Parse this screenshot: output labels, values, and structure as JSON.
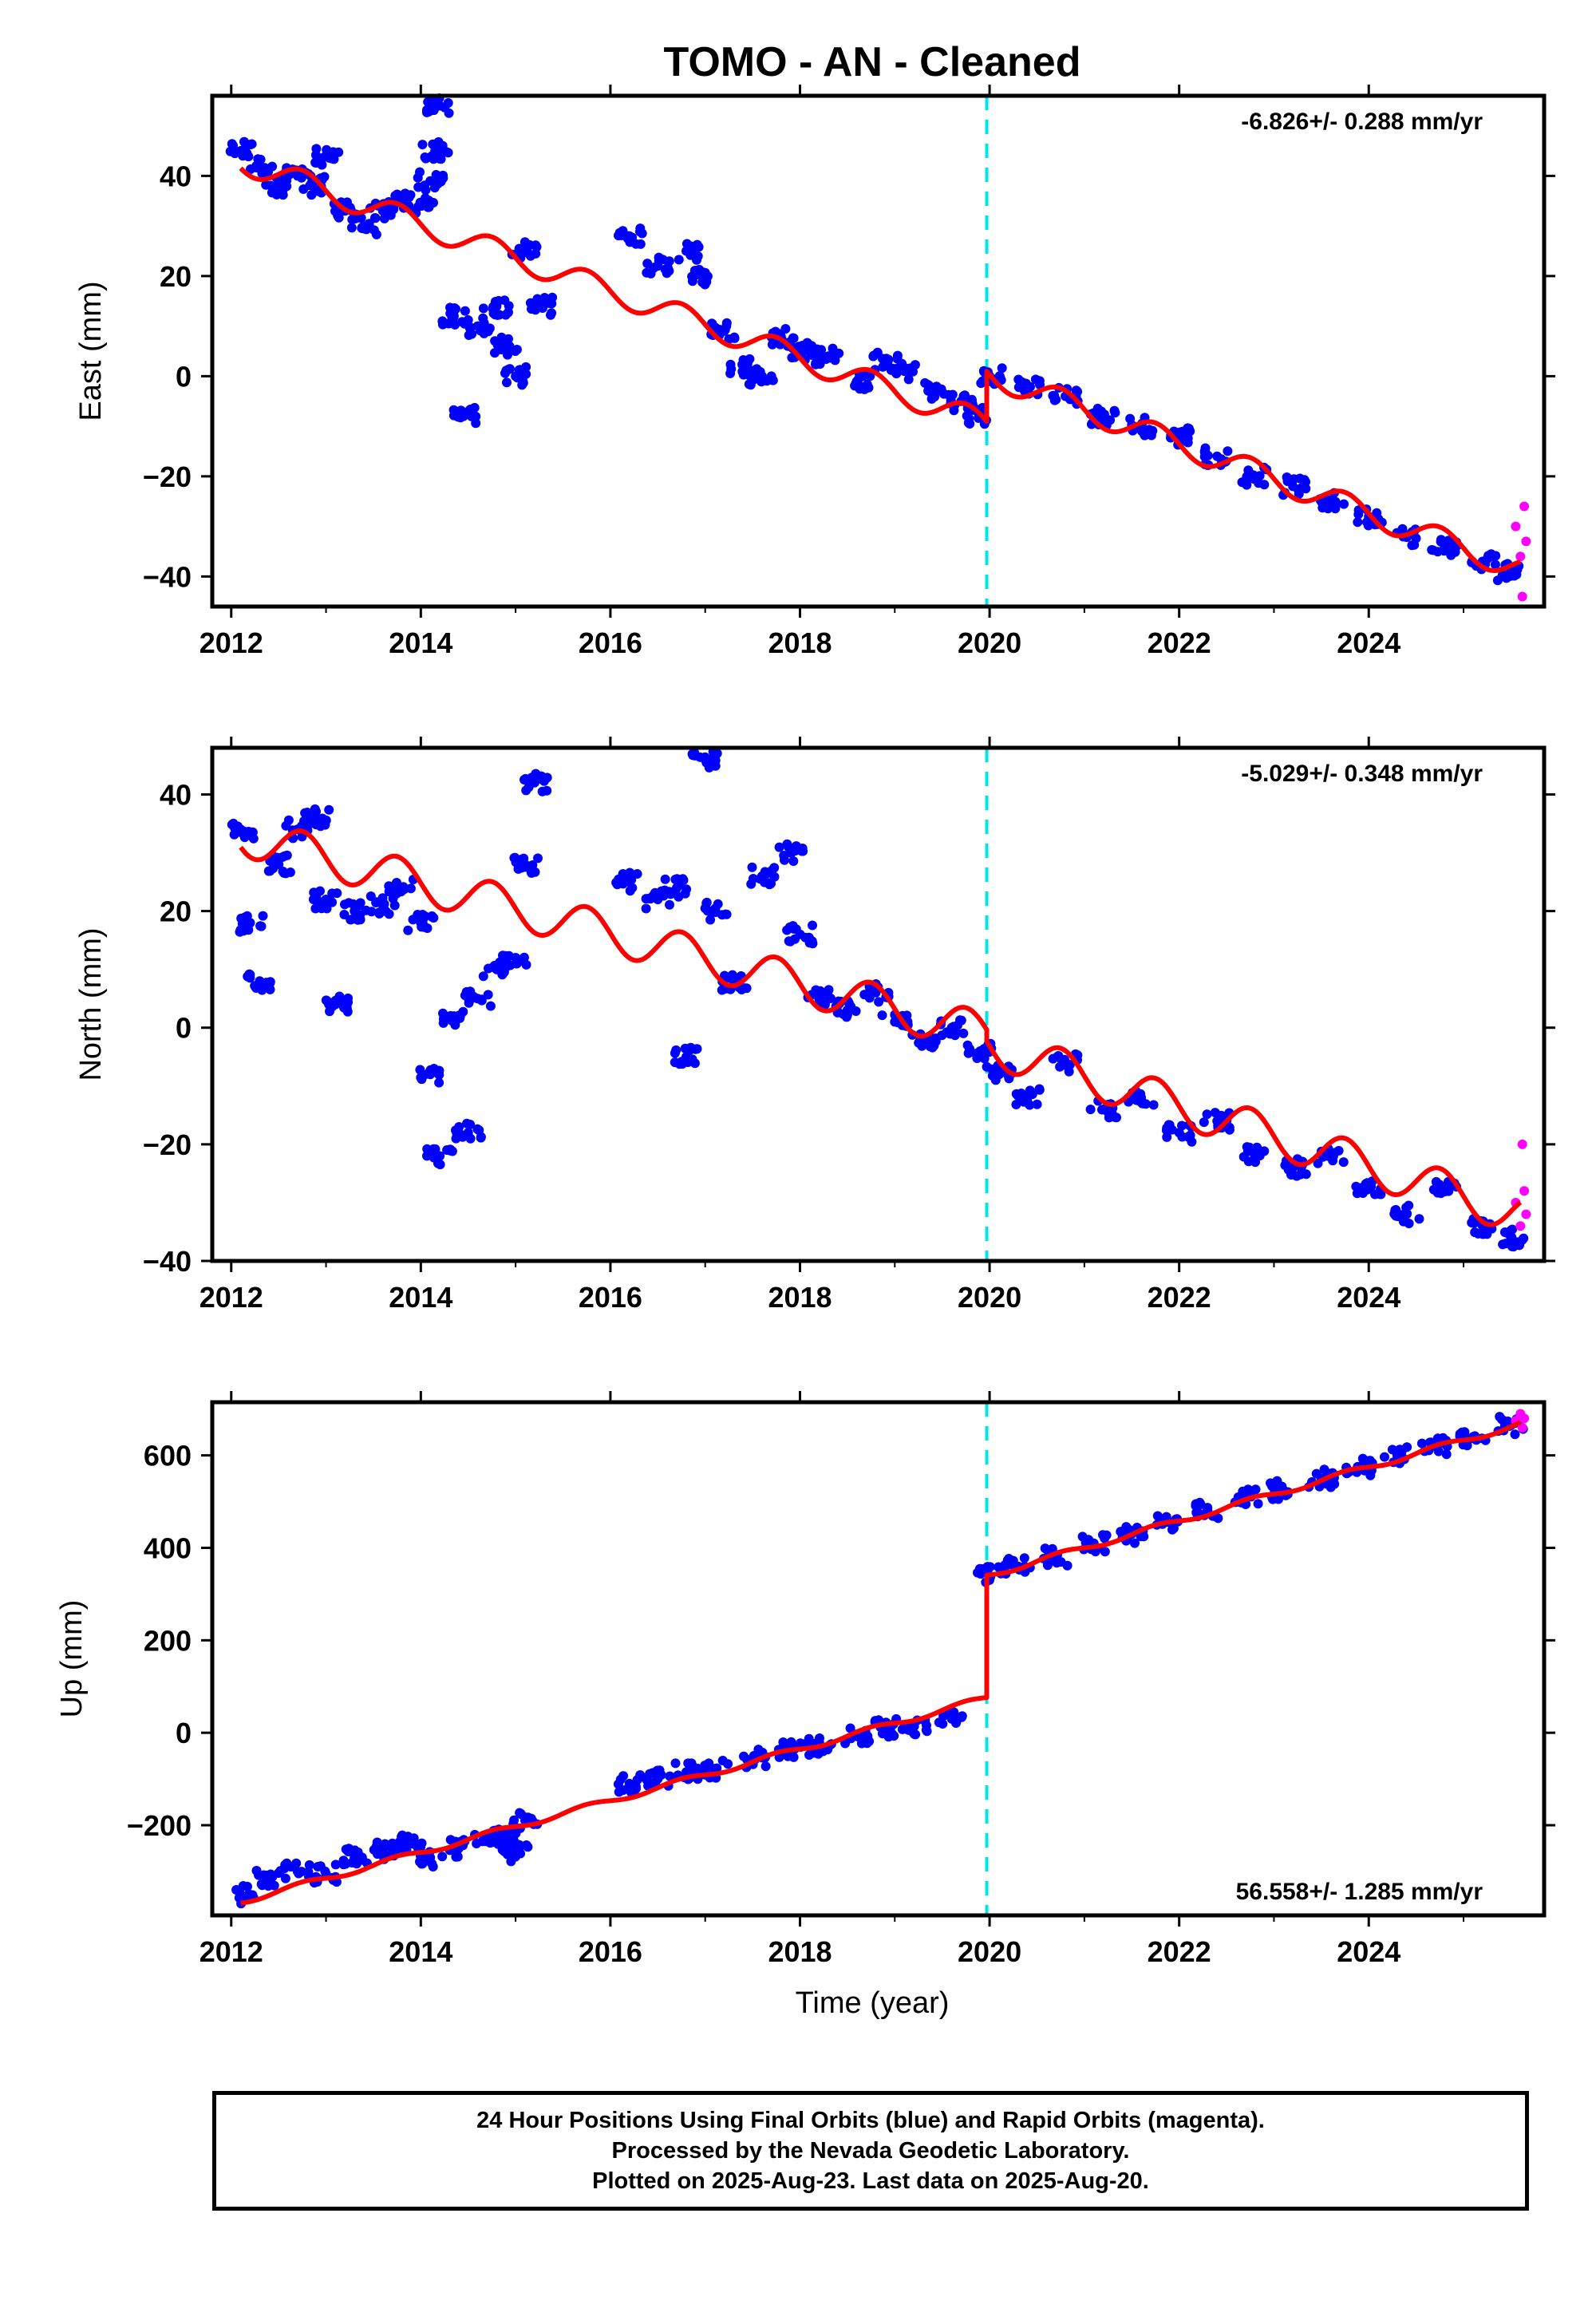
{
  "title": "TOMO  - AN - Cleaned",
  "xlabel": "Time (year)",
  "footer": {
    "line1": "24 Hour Positions Using Final Orbits (blue) and Rapid Orbits (magenta).",
    "line2": "Processed by the Nevada Geodetic Laboratory.",
    "line3": "Plotted on 2025-Aug-23. Last data on 2025-Aug-20."
  },
  "colors": {
    "final": "#0000ff",
    "rapid": "#ff00ff",
    "model": "#ff0000",
    "equipment_change": "#00e5e5"
  },
  "chart_data": [
    {
      "type": "scatter",
      "name": "east",
      "ylabel": "East (mm)",
      "rate_label": "-6.826+/- 0.288 mm/yr",
      "rate_position": "top-right",
      "xlim": [
        2011.8,
        2025.85
      ],
      "ylim": [
        -46,
        56
      ],
      "xticks": [
        2012,
        2014,
        2016,
        2018,
        2020,
        2022,
        2024
      ],
      "yticks": [
        -40,
        -20,
        0,
        20,
        40
      ],
      "step_epoch": 2019.97,
      "model": {
        "segments": [
          {
            "x0": 2012.1,
            "x1": 2019.97,
            "y0": 43.0,
            "y1": -9.5
          },
          {
            "x0": 2019.97,
            "x1": 2025.6,
            "y0": 0.5,
            "y1": -38.5
          }
        ],
        "seasonal_amplitude": 2.5
      },
      "final_points": [
        [
          2012.1,
          45
        ],
        [
          2012.3,
          42
        ],
        [
          2012.5,
          38
        ],
        [
          2012.7,
          40
        ],
        [
          2012.9,
          38
        ],
        [
          2013.0,
          44
        ],
        [
          2013.2,
          33
        ],
        [
          2013.4,
          30
        ],
        [
          2013.6,
          33
        ],
        [
          2013.8,
          35
        ],
        [
          2014.0,
          34
        ],
        [
          2014.1,
          39
        ],
        [
          2014.15,
          45
        ],
        [
          2014.2,
          54
        ],
        [
          2014.35,
          12
        ],
        [
          2014.45,
          -8
        ],
        [
          2014.6,
          10
        ],
        [
          2014.8,
          14
        ],
        [
          2014.9,
          6
        ],
        [
          2015.0,
          0
        ],
        [
          2015.1,
          25
        ],
        [
          2015.25,
          14
        ],
        [
          2016.2,
          28
        ],
        [
          2016.5,
          22
        ],
        [
          2016.8,
          25
        ],
        [
          2017.0,
          20
        ],
        [
          2017.2,
          9
        ],
        [
          2017.4,
          2
        ],
        [
          2017.6,
          0
        ],
        [
          2017.8,
          8
        ],
        [
          2018.0,
          5
        ],
        [
          2018.3,
          4
        ],
        [
          2018.6,
          -1
        ],
        [
          2018.9,
          3
        ],
        [
          2019.1,
          1
        ],
        [
          2019.4,
          -3
        ],
        [
          2019.7,
          -5
        ],
        [
          2019.9,
          -8
        ],
        [
          2020.0,
          0
        ],
        [
          2020.4,
          -2
        ],
        [
          2020.8,
          -4
        ],
        [
          2021.2,
          -8
        ],
        [
          2021.6,
          -10
        ],
        [
          2022.0,
          -12
        ],
        [
          2022.4,
          -16
        ],
        [
          2022.8,
          -20
        ],
        [
          2023.2,
          -22
        ],
        [
          2023.6,
          -25
        ],
        [
          2024.0,
          -28
        ],
        [
          2024.4,
          -32
        ],
        [
          2024.8,
          -34
        ],
        [
          2025.2,
          -37
        ],
        [
          2025.5,
          -39
        ]
      ],
      "rapid_points": [
        [
          2025.55,
          -30
        ],
        [
          2025.6,
          -36
        ],
        [
          2025.62,
          -44
        ],
        [
          2025.64,
          -26
        ],
        [
          2025.66,
          -33
        ]
      ]
    },
    {
      "type": "scatter",
      "name": "north",
      "ylabel": "North (mm)",
      "rate_label": "-5.029+/- 0.348 mm/yr",
      "rate_position": "top-right",
      "xlim": [
        2011.8,
        2025.85
      ],
      "ylim": [
        -40,
        48
      ],
      "xticks": [
        2012,
        2014,
        2016,
        2018,
        2020,
        2022,
        2024
      ],
      "yticks": [
        -40,
        -20,
        0,
        20,
        40
      ],
      "step_epoch": 2019.97,
      "model": {
        "segments": [
          {
            "x0": 2012.1,
            "x1": 2019.97,
            "y0": 33.0,
            "y1": -1.0
          },
          {
            "x0": 2019.97,
            "x1": 2025.6,
            "y0": -3.0,
            "y1": -32.0
          }
        ],
        "seasonal_amplitude": 3.5
      },
      "final_points": [
        [
          2012.1,
          34
        ],
        [
          2012.2,
          18
        ],
        [
          2012.3,
          8
        ],
        [
          2012.5,
          28
        ],
        [
          2012.7,
          34
        ],
        [
          2012.9,
          36
        ],
        [
          2013.0,
          22
        ],
        [
          2013.1,
          4
        ],
        [
          2013.3,
          20
        ],
        [
          2013.6,
          21
        ],
        [
          2013.8,
          24
        ],
        [
          2014.0,
          18
        ],
        [
          2014.1,
          -8
        ],
        [
          2014.2,
          -22
        ],
        [
          2014.35,
          2
        ],
        [
          2014.5,
          -18
        ],
        [
          2014.6,
          5
        ],
        [
          2014.8,
          10
        ],
        [
          2015.0,
          12
        ],
        [
          2015.1,
          28
        ],
        [
          2015.2,
          42
        ],
        [
          2016.2,
          25
        ],
        [
          2016.5,
          22
        ],
        [
          2016.7,
          24
        ],
        [
          2016.8,
          -5
        ],
        [
          2017.0,
          46
        ],
        [
          2017.1,
          20
        ],
        [
          2017.3,
          8
        ],
        [
          2017.6,
          26
        ],
        [
          2017.9,
          30
        ],
        [
          2018.0,
          16
        ],
        [
          2018.2,
          5
        ],
        [
          2018.5,
          3
        ],
        [
          2018.8,
          6
        ],
        [
          2019.0,
          1
        ],
        [
          2019.3,
          -2
        ],
        [
          2019.6,
          0
        ],
        [
          2019.9,
          -4
        ],
        [
          2020.1,
          -8
        ],
        [
          2020.4,
          -12
        ],
        [
          2020.8,
          -6
        ],
        [
          2021.2,
          -14
        ],
        [
          2021.6,
          -12
        ],
        [
          2022.0,
          -18
        ],
        [
          2022.4,
          -16
        ],
        [
          2022.8,
          -22
        ],
        [
          2023.2,
          -24
        ],
        [
          2023.6,
          -22
        ],
        [
          2024.0,
          -27
        ],
        [
          2024.4,
          -32
        ],
        [
          2024.8,
          -28
        ],
        [
          2025.2,
          -34
        ],
        [
          2025.5,
          -36
        ]
      ],
      "rapid_points": [
        [
          2025.55,
          -30
        ],
        [
          2025.6,
          -34
        ],
        [
          2025.62,
          -20
        ],
        [
          2025.64,
          -28
        ],
        [
          2025.66,
          -32
        ]
      ]
    },
    {
      "type": "scatter",
      "name": "up",
      "ylabel": "Up (mm)",
      "rate_label": "56.558+/- 1.285 mm/yr",
      "rate_position": "bottom-right",
      "xlim": [
        2011.8,
        2025.85
      ],
      "ylim": [
        -395,
        715
      ],
      "xticks": [
        2012,
        2014,
        2016,
        2018,
        2020,
        2022,
        2024
      ],
      "yticks": [
        -200,
        0,
        200,
        400,
        600
      ],
      "step_epoch": 2019.97,
      "model": {
        "segments": [
          {
            "x0": 2012.1,
            "x1": 2019.97,
            "y0": -365,
            "y1": 75
          },
          {
            "x0": 2019.97,
            "x1": 2025.6,
            "y0": 340,
            "y1": 668
          }
        ],
        "seasonal_amplitude": 6
      },
      "final_points": [
        [
          2012.1,
          -350
        ],
        [
          2012.4,
          -315
        ],
        [
          2012.7,
          -300
        ],
        [
          2013.0,
          -305
        ],
        [
          2013.3,
          -270
        ],
        [
          2013.6,
          -255
        ],
        [
          2013.9,
          -240
        ],
        [
          2014.1,
          -270
        ],
        [
          2014.4,
          -250
        ],
        [
          2014.7,
          -225
        ],
        [
          2014.9,
          -230
        ],
        [
          2015.0,
          -260
        ],
        [
          2015.1,
          -190
        ],
        [
          2016.2,
          -110
        ],
        [
          2016.5,
          -100
        ],
        [
          2016.8,
          -85
        ],
        [
          2017.1,
          -80
        ],
        [
          2017.5,
          -55
        ],
        [
          2017.9,
          -40
        ],
        [
          2018.2,
          -30
        ],
        [
          2018.6,
          -5
        ],
        [
          2018.9,
          10
        ],
        [
          2019.2,
          15
        ],
        [
          2019.6,
          30
        ],
        [
          2020.0,
          340
        ],
        [
          2020.3,
          360
        ],
        [
          2020.7,
          380
        ],
        [
          2021.1,
          410
        ],
        [
          2021.5,
          430
        ],
        [
          2021.9,
          455
        ],
        [
          2022.3,
          480
        ],
        [
          2022.7,
          510
        ],
        [
          2023.1,
          525
        ],
        [
          2023.5,
          550
        ],
        [
          2023.9,
          575
        ],
        [
          2024.3,
          600
        ],
        [
          2024.7,
          620
        ],
        [
          2025.1,
          640
        ],
        [
          2025.5,
          665
        ]
      ],
      "rapid_points": [
        [
          2025.55,
          675
        ],
        [
          2025.6,
          690
        ],
        [
          2025.62,
          660
        ],
        [
          2025.64,
          680
        ]
      ]
    }
  ]
}
